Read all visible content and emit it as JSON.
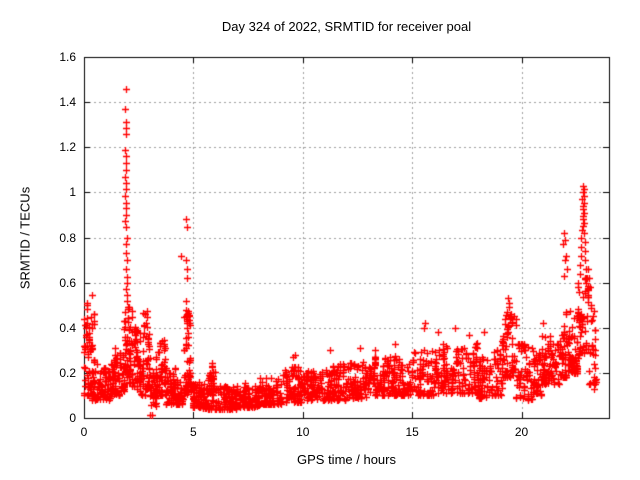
{
  "chart_data": {
    "type": "scatter",
    "title": "Day 324 of 2022, SRMTID for receiver poal",
    "xlabel": "GPS time / hours",
    "ylabel": "SRMTID / TECUs",
    "xlim": [
      0,
      24
    ],
    "ylim": [
      0,
      1.6
    ],
    "xtick_labels": [
      "0",
      "5",
      "10",
      "15",
      "20"
    ],
    "ytick_labels": [
      "0",
      "0.2",
      "0.4",
      "0.6",
      "0.8",
      "1",
      "1.2",
      "1.4",
      "1.6"
    ],
    "grid": true,
    "legend": "none",
    "marker": "plus",
    "colors": {
      "points": "#ff0000",
      "grid": "#a0a0a0",
      "axes": "#000000",
      "background": "#ffffff",
      "text": "#000000"
    },
    "series_name": "SRMTID",
    "seed": 20220324,
    "density_bins": [
      [
        0.0,
        0.35,
        0.1,
        0.45,
        30
      ],
      [
        0.05,
        0.45,
        0.3,
        0.56,
        14
      ],
      [
        0.35,
        0.85,
        0.08,
        0.26,
        40
      ],
      [
        0.85,
        1.25,
        0.08,
        0.22,
        35
      ],
      [
        1.25,
        1.65,
        0.1,
        0.32,
        38
      ],
      [
        1.65,
        1.85,
        0.12,
        0.3,
        18
      ],
      [
        1.82,
        2.05,
        0.18,
        0.5,
        26
      ],
      [
        2.05,
        2.35,
        0.14,
        0.5,
        30
      ],
      [
        2.35,
        2.62,
        0.12,
        0.4,
        26
      ],
      [
        2.62,
        3.0,
        0.1,
        0.38,
        34
      ],
      [
        2.7,
        2.9,
        0.4,
        0.48,
        6
      ],
      [
        3.0,
        3.3,
        0.05,
        0.2,
        24
      ],
      [
        3.3,
        3.72,
        0.1,
        0.35,
        36
      ],
      [
        3.72,
        4.2,
        0.06,
        0.22,
        32
      ],
      [
        4.2,
        4.55,
        0.06,
        0.18,
        26
      ],
      [
        4.55,
        4.85,
        0.1,
        0.48,
        40
      ],
      [
        4.85,
        5.3,
        0.05,
        0.17,
        36
      ],
      [
        5.3,
        5.65,
        0.04,
        0.15,
        26
      ],
      [
        5.65,
        6.1,
        0.04,
        0.2,
        34
      ],
      [
        5.7,
        6.0,
        0.2,
        0.26,
        6
      ],
      [
        6.1,
        7.0,
        0.04,
        0.14,
        60
      ],
      [
        7.0,
        8.0,
        0.05,
        0.16,
        62
      ],
      [
        8.0,
        9.0,
        0.06,
        0.18,
        62
      ],
      [
        9.0,
        10.0,
        0.07,
        0.23,
        62
      ],
      [
        10.0,
        11.0,
        0.08,
        0.21,
        62
      ],
      [
        11.0,
        12.0,
        0.08,
        0.24,
        62
      ],
      [
        12.0,
        13.0,
        0.09,
        0.25,
        62
      ],
      [
        13.0,
        14.0,
        0.1,
        0.27,
        62
      ],
      [
        14.0,
        15.0,
        0.1,
        0.28,
        58
      ],
      [
        15.0,
        16.0,
        0.1,
        0.31,
        55
      ],
      [
        16.0,
        17.0,
        0.11,
        0.33,
        55
      ],
      [
        17.0,
        18.0,
        0.11,
        0.34,
        55
      ],
      [
        18.0,
        18.7,
        0.09,
        0.31,
        38
      ],
      [
        18.7,
        19.1,
        0.1,
        0.3,
        24
      ],
      [
        19.1,
        19.75,
        0.18,
        0.46,
        45
      ],
      [
        19.75,
        20.5,
        0.08,
        0.33,
        42
      ],
      [
        20.5,
        20.9,
        0.1,
        0.3,
        28
      ],
      [
        20.9,
        21.3,
        0.15,
        0.4,
        30
      ],
      [
        21.3,
        21.8,
        0.15,
        0.38,
        32
      ],
      [
        21.8,
        22.2,
        0.18,
        0.48,
        34
      ],
      [
        22.2,
        22.6,
        0.2,
        0.52,
        36
      ],
      [
        22.6,
        23.05,
        0.28,
        0.62,
        40
      ],
      [
        23.05,
        23.4,
        0.15,
        0.5,
        20
      ]
    ],
    "feature_points": [
      [
        1.9,
        1.46
      ],
      [
        1.88,
        1.37
      ],
      [
        1.92,
        1.31
      ],
      [
        1.9,
        1.285
      ],
      [
        1.91,
        1.26
      ],
      [
        1.89,
        1.19
      ],
      [
        1.9,
        1.16
      ],
      [
        1.92,
        1.13
      ],
      [
        1.9,
        1.1
      ],
      [
        1.88,
        1.07
      ],
      [
        1.91,
        1.04
      ],
      [
        1.9,
        1.015
      ],
      [
        1.89,
        0.985
      ],
      [
        1.92,
        0.955
      ],
      [
        1.9,
        0.93
      ],
      [
        1.93,
        0.9
      ],
      [
        1.89,
        0.875
      ],
      [
        1.91,
        0.845
      ],
      [
        1.95,
        0.8
      ],
      [
        1.93,
        0.77
      ],
      [
        1.94,
        0.73
      ],
      [
        1.96,
        0.7
      ],
      [
        1.92,
        0.66
      ],
      [
        1.95,
        0.625
      ],
      [
        1.97,
        0.6
      ],
      [
        1.93,
        0.57
      ],
      [
        1.96,
        0.545
      ],
      [
        1.98,
        0.52
      ],
      [
        0.12,
        0.5
      ],
      [
        0.35,
        0.545
      ],
      [
        4.68,
        0.88
      ],
      [
        4.7,
        0.845
      ],
      [
        4.45,
        0.72
      ],
      [
        4.66,
        0.7
      ],
      [
        4.69,
        0.66
      ],
      [
        4.72,
        0.62
      ],
      [
        4.67,
        0.52
      ],
      [
        3.02,
        0.012
      ],
      [
        3.1,
        0.015
      ],
      [
        9.55,
        0.27
      ],
      [
        9.65,
        0.28
      ],
      [
        11.25,
        0.3
      ],
      [
        12.6,
        0.31
      ],
      [
        13.3,
        0.3
      ],
      [
        14.2,
        0.33
      ],
      [
        15.55,
        0.4
      ],
      [
        15.6,
        0.42
      ],
      [
        16.2,
        0.38
      ],
      [
        16.95,
        0.4
      ],
      [
        17.6,
        0.37
      ],
      [
        18.3,
        0.38
      ],
      [
        19.38,
        0.53
      ],
      [
        19.42,
        0.51
      ],
      [
        19.45,
        0.49
      ],
      [
        19.35,
        0.47
      ],
      [
        19.5,
        0.46
      ],
      [
        21.0,
        0.42
      ],
      [
        21.95,
        0.82
      ],
      [
        22.0,
        0.79
      ],
      [
        21.9,
        0.77
      ],
      [
        22.05,
        0.72
      ],
      [
        21.98,
        0.7
      ],
      [
        22.1,
        0.66
      ],
      [
        21.92,
        0.63
      ],
      [
        22.82,
        1.03
      ],
      [
        22.85,
        1.015
      ],
      [
        22.8,
        1.0
      ],
      [
        22.84,
        0.985
      ],
      [
        22.78,
        0.97
      ],
      [
        22.86,
        0.955
      ],
      [
        22.82,
        0.94
      ],
      [
        22.8,
        0.925
      ],
      [
        22.84,
        0.91
      ],
      [
        22.79,
        0.895
      ],
      [
        22.83,
        0.88
      ],
      [
        22.87,
        0.865
      ],
      [
        22.81,
        0.85
      ],
      [
        22.76,
        0.835
      ],
      [
        22.85,
        0.82
      ],
      [
        22.74,
        0.8
      ],
      [
        22.88,
        0.78
      ],
      [
        22.72,
        0.76
      ],
      [
        22.9,
        0.74
      ],
      [
        22.7,
        0.72
      ],
      [
        22.92,
        0.7
      ],
      [
        22.68,
        0.68
      ],
      [
        22.95,
        0.66
      ],
      [
        22.66,
        0.64
      ],
      [
        23.0,
        0.62
      ],
      [
        23.05,
        0.66
      ],
      [
        23.1,
        0.62
      ],
      [
        22.6,
        0.6
      ],
      [
        23.15,
        0.58
      ],
      [
        22.62,
        0.56
      ],
      [
        23.25,
        0.16
      ],
      [
        23.3,
        0.13
      ]
    ]
  }
}
